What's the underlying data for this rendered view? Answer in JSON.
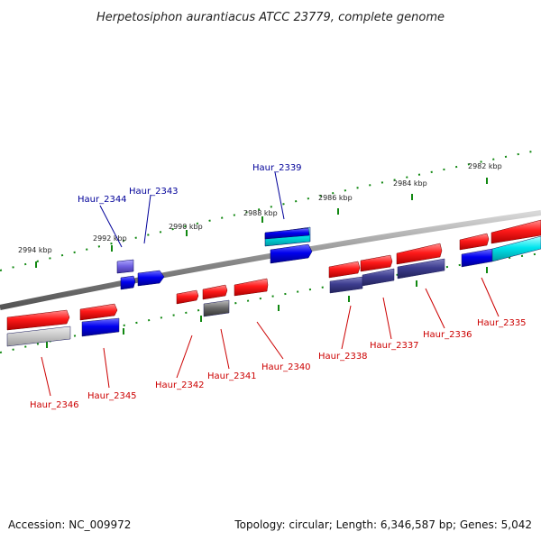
{
  "title": "Herpetosiphon aurantiacus ATCC 23779, complete genome",
  "footer": {
    "accession": "Accession: NC_009972",
    "topology": "Topology: circular; Length: 6,346,587 bp; Genes: 5,042"
  },
  "colors": {
    "forward_gene": "#ff1a1a",
    "reverse_gene": "#0000ee",
    "purple_gene": "#3d3d8f",
    "cyan_gene": "#00e5ee",
    "label_forward": "#cc0000",
    "label_reverse": "#000099",
    "tick": "#118811",
    "backbone": "#8a8a8a"
  },
  "kbp_labels": [
    "2994 kbp",
    "2992 kbp",
    "2990 kbp",
    "2988 kbp",
    "2986 kbp",
    "2984 kbp",
    "2982 kbp"
  ],
  "genes_forward_labels": [
    "Haur_2346",
    "Haur_2345",
    "Haur_2342",
    "Haur_2341",
    "Haur_2340",
    "Haur_2338",
    "Haur_2337",
    "Haur_2336",
    "Haur_2335"
  ],
  "genes_reverse_labels": [
    "Haur_2344",
    "Haur_2343",
    "Haur_2339"
  ]
}
